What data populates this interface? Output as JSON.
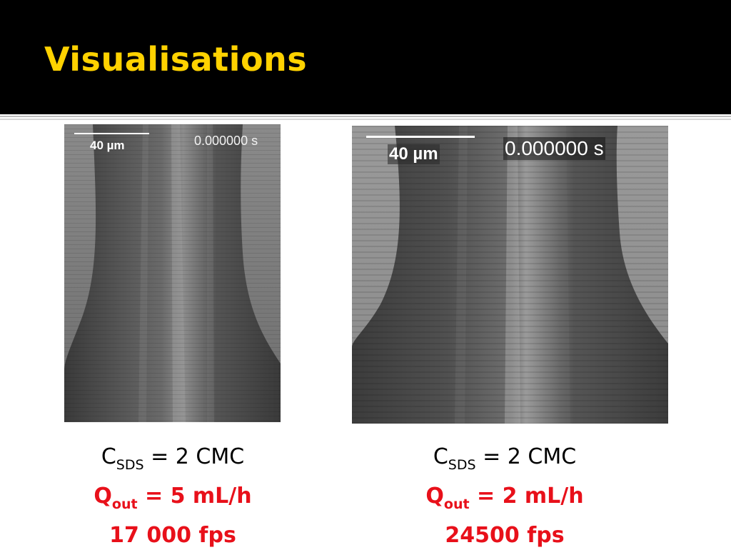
{
  "slide": {
    "title": "Visualisations",
    "colors": {
      "title": "#FFD200",
      "header_background": "#000000",
      "highlight_red": "#E8101A"
    }
  },
  "panels": [
    {
      "scale_bar": "40 µm",
      "timestamp": "0.000000 s",
      "caption": {
        "c_symbol": "C",
        "c_subscript": "SDS",
        "c_value": "= 2 CMC",
        "q_symbol": "Q",
        "q_subscript": "out",
        "q_value": "= 5 mL/h",
        "fps": "17 000 fps"
      }
    },
    {
      "scale_bar": "40 µm",
      "timestamp": "0.000000 s",
      "caption": {
        "c_symbol": "C",
        "c_subscript": "SDS",
        "c_value": "= 2 CMC",
        "q_symbol": "Q",
        "q_subscript": "out",
        "q_value": "= 2 mL/h",
        "fps": "24500 fps"
      }
    }
  ]
}
